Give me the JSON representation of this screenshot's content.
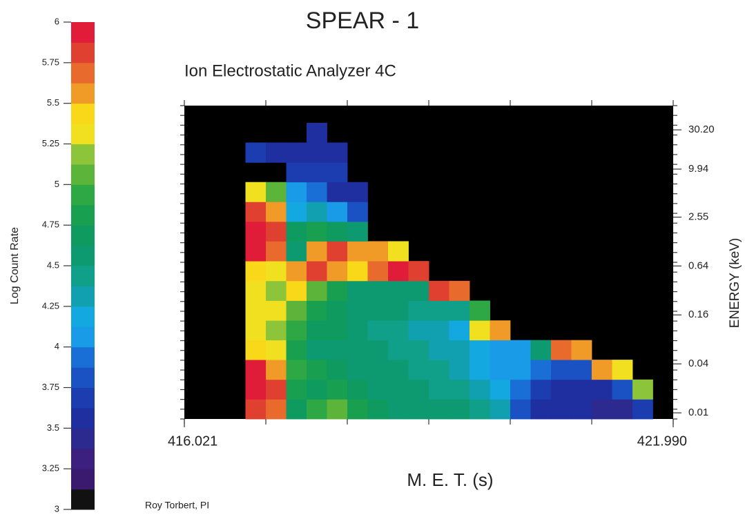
{
  "chart_data": {
    "type": "heatmap",
    "title": "SPEAR - 1",
    "subtitle": "Ion Electrostatic Analyzer 4C",
    "xlabel": "M. E. T. (s)",
    "ylabel": "ENERGY (keV)",
    "zlabel": "Log Count Rate",
    "footer": "Roy Torbert, PI",
    "xlim": [
      416.021,
      421.99
    ],
    "xticks": [
      {
        "value": 416.021,
        "label": "416.021"
      },
      {
        "value": 421.99,
        "label": "421.990"
      }
    ],
    "ylim": [
      0.0084,
      60
    ],
    "ylog": true,
    "yticks": [
      0.01,
      0.04,
      0.16,
      0.64,
      2.55,
      9.94,
      {
        "value": 30.2,
        "label": "30.20"
      }
    ],
    "zlim": [
      3,
      6
    ],
    "zticks": [
      3,
      3.25,
      3.5,
      3.75,
      4,
      4.25,
      4.5,
      4.75,
      5,
      5.25,
      5.5,
      5.75,
      6
    ],
    "background": "#000000",
    "colorscale": [
      "#111111",
      "#3a1a6e",
      "#3b2080",
      "#2d2a8f",
      "#1f2fa0",
      "#1c3db0",
      "#1a52c4",
      "#1a6fd6",
      "#1a9be8",
      "#14a8e0",
      "#10a0b0",
      "#10a08a",
      "#0e9a70",
      "#0f9a60",
      "#18a050",
      "#2ea844",
      "#5db43a",
      "#8cc43a",
      "#f0e020",
      "#f8d818",
      "#f09a28",
      "#e86a2c",
      "#e04030",
      "#e01c38"
    ],
    "xbins": [
      416.021,
      416.27,
      416.518,
      416.767,
      417.016,
      417.265,
      417.513,
      417.762,
      418.011,
      418.259,
      418.508,
      418.757,
      419.006,
      419.254,
      419.503,
      419.752,
      420.0,
      420.249,
      420.498,
      420.746,
      420.995,
      421.244,
      421.493,
      421.741,
      421.99
    ],
    "ybins": [
      0.0084,
      0.0147,
      0.0257,
      0.045,
      0.0785,
      0.137,
      0.24,
      0.42,
      0.736,
      1.29,
      2.25,
      3.94,
      6.89,
      12,
      21.1,
      36.9,
      60
    ],
    "z": [
      [
        null,
        null,
        null,
        5.8,
        5.7,
        4.7,
        4.9,
        5.0,
        4.8,
        4.7,
        4.6,
        4.5,
        4.5,
        4.5,
        4.4,
        4.3,
        3.8,
        3.6,
        3.5,
        3.5,
        3.4,
        3.4,
        3.7,
        null
      ],
      [
        null,
        null,
        null,
        5.9,
        5.8,
        4.8,
        4.7,
        4.8,
        4.7,
        4.6,
        4.5,
        4.5,
        4.4,
        4.4,
        4.3,
        4.2,
        3.9,
        3.7,
        3.6,
        3.6,
        3.5,
        3.8,
        5.2,
        null
      ],
      [
        null,
        null,
        null,
        5.9,
        5.6,
        4.9,
        4.8,
        4.7,
        4.6,
        4.5,
        4.5,
        4.4,
        4.4,
        4.3,
        4.2,
        4.1,
        4.0,
        3.9,
        3.8,
        3.8,
        5.5,
        5.3,
        null,
        null
      ],
      [
        null,
        null,
        null,
        5.4,
        5.3,
        4.8,
        4.6,
        4.6,
        4.6,
        4.5,
        4.4,
        4.4,
        4.3,
        4.3,
        4.2,
        4.0,
        4.0,
        4.6,
        5.7,
        5.6,
        null,
        null,
        null,
        null
      ],
      [
        null,
        null,
        null,
        5.3,
        5.2,
        4.9,
        4.7,
        4.7,
        4.6,
        4.4,
        4.4,
        4.3,
        4.3,
        4.2,
        5.3,
        5.5,
        null,
        null,
        null,
        null,
        null,
        null,
        null,
        null
      ],
      [
        null,
        null,
        null,
        5.3,
        5.3,
        5.0,
        4.8,
        4.7,
        4.5,
        4.5,
        4.5,
        4.4,
        4.4,
        4.4,
        4.9,
        null,
        null,
        null,
        null,
        null,
        null,
        null,
        null,
        null
      ],
      [
        null,
        null,
        null,
        5.3,
        5.2,
        5.4,
        5.0,
        4.8,
        4.6,
        4.6,
        4.6,
        4.5,
        5.8,
        5.7,
        null,
        null,
        null,
        null,
        null,
        null,
        null,
        null,
        null,
        null
      ],
      [
        null,
        null,
        null,
        5.4,
        5.3,
        5.6,
        5.8,
        5.5,
        5.4,
        5.7,
        5.9,
        5.8,
        null,
        null,
        null,
        null,
        null,
        null,
        null,
        null,
        null,
        null,
        null,
        null
      ],
      [
        null,
        null,
        null,
        5.9,
        5.7,
        4.6,
        5.6,
        5.8,
        5.6,
        5.5,
        5.3,
        null,
        null,
        null,
        null,
        null,
        null,
        null,
        null,
        null,
        null,
        null,
        null,
        null
      ],
      [
        null,
        null,
        null,
        5.9,
        5.8,
        4.7,
        4.8,
        4.7,
        4.5,
        null,
        null,
        null,
        null,
        null,
        null,
        null,
        null,
        null,
        null,
        null,
        null,
        null,
        null,
        null
      ],
      [
        null,
        null,
        null,
        5.8,
        5.5,
        4.2,
        4.3,
        4.0,
        3.8,
        null,
        null,
        null,
        null,
        null,
        null,
        null,
        null,
        null,
        null,
        null,
        null,
        null,
        null,
        null
      ],
      [
        null,
        null,
        null,
        5.3,
        5.0,
        4.0,
        3.9,
        3.6,
        3.6,
        null,
        null,
        null,
        null,
        null,
        null,
        null,
        null,
        null,
        null,
        null,
        null,
        null,
        null,
        null
      ],
      [
        null,
        null,
        null,
        null,
        null,
        3.7,
        3.7,
        3.7,
        null,
        null,
        null,
        null,
        null,
        null,
        null,
        null,
        null,
        null,
        null,
        null,
        null,
        null,
        null,
        null
      ],
      [
        null,
        null,
        null,
        3.7,
        3.6,
        3.6,
        3.6,
        3.6,
        null,
        null,
        null,
        null,
        null,
        null,
        null,
        null,
        null,
        null,
        null,
        null,
        null,
        null,
        null,
        null
      ],
      [
        null,
        null,
        null,
        null,
        null,
        null,
        3.5,
        null,
        null,
        null,
        null,
        null,
        null,
        null,
        null,
        null,
        null,
        null,
        null,
        null,
        null,
        null,
        null,
        null
      ],
      [
        null,
        null,
        null,
        null,
        null,
        null,
        null,
        null,
        null,
        null,
        null,
        null,
        null,
        null,
        null,
        null,
        null,
        null,
        null,
        null,
        null,
        null,
        null,
        null
      ]
    ]
  }
}
